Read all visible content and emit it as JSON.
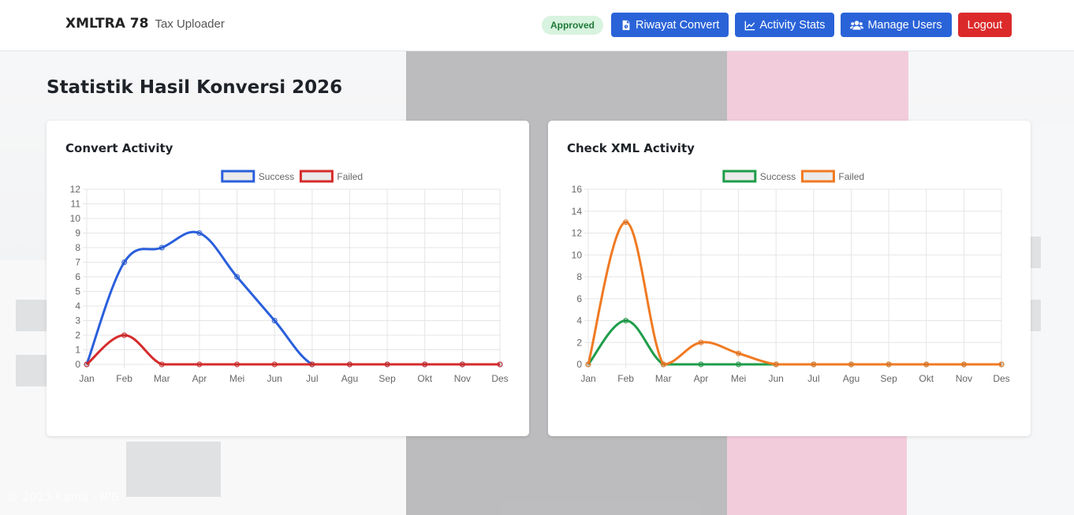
{
  "navbar": {
    "brand": "XMLTRA 78",
    "subtitle": "Tax Uploader",
    "status_badge": "Approved",
    "buttons": {
      "riwayat": "Riwayat Convert",
      "stats": "Activity Stats",
      "users": "Manage Users",
      "logout": "Logout"
    }
  },
  "page": {
    "title": "Statistik Hasil Konversi 2026"
  },
  "footer": {
    "text": "© 2025 Kania - IPB"
  },
  "colors": {
    "primary": "#2a63d8",
    "danger": "#dc2a2a",
    "convert_success": "#2a5fdc",
    "convert_failed": "#d52b2b",
    "check_success": "#1f9d4a",
    "check_failed": "#f07a22"
  },
  "chart_data": [
    {
      "type": "line",
      "title": "Convert Activity",
      "categories": [
        "Jan",
        "Feb",
        "Mar",
        "Apr",
        "Mei",
        "Jun",
        "Jul",
        "Agu",
        "Sep",
        "Okt",
        "Nov",
        "Des"
      ],
      "series": [
        {
          "name": "Success",
          "values": [
            0,
            7,
            8,
            9,
            6,
            3,
            0,
            0,
            0,
            0,
            0,
            0
          ]
        },
        {
          "name": "Failed",
          "values": [
            0,
            2,
            0,
            0,
            0,
            0,
            0,
            0,
            0,
            0,
            0,
            0
          ]
        }
      ],
      "ylim": [
        0,
        12
      ],
      "yticks": [
        0,
        1,
        2,
        3,
        4,
        5,
        6,
        7,
        8,
        9,
        10,
        11,
        12
      ],
      "legend": "top",
      "grid": true
    },
    {
      "type": "line",
      "title": "Check XML Activity",
      "categories": [
        "Jan",
        "Feb",
        "Mar",
        "Apr",
        "Mei",
        "Jun",
        "Jul",
        "Agu",
        "Sep",
        "Okt",
        "Nov",
        "Des"
      ],
      "series": [
        {
          "name": "Success",
          "values": [
            0,
            4,
            0,
            0,
            0,
            0,
            0,
            0,
            0,
            0,
            0,
            0
          ]
        },
        {
          "name": "Failed",
          "values": [
            0,
            13,
            0,
            2,
            1,
            0,
            0,
            0,
            0,
            0,
            0,
            0
          ]
        }
      ],
      "ylim": [
        0,
        16
      ],
      "yticks": [
        0,
        2,
        4,
        6,
        8,
        10,
        12,
        14,
        16
      ],
      "legend": "top",
      "grid": true
    }
  ]
}
